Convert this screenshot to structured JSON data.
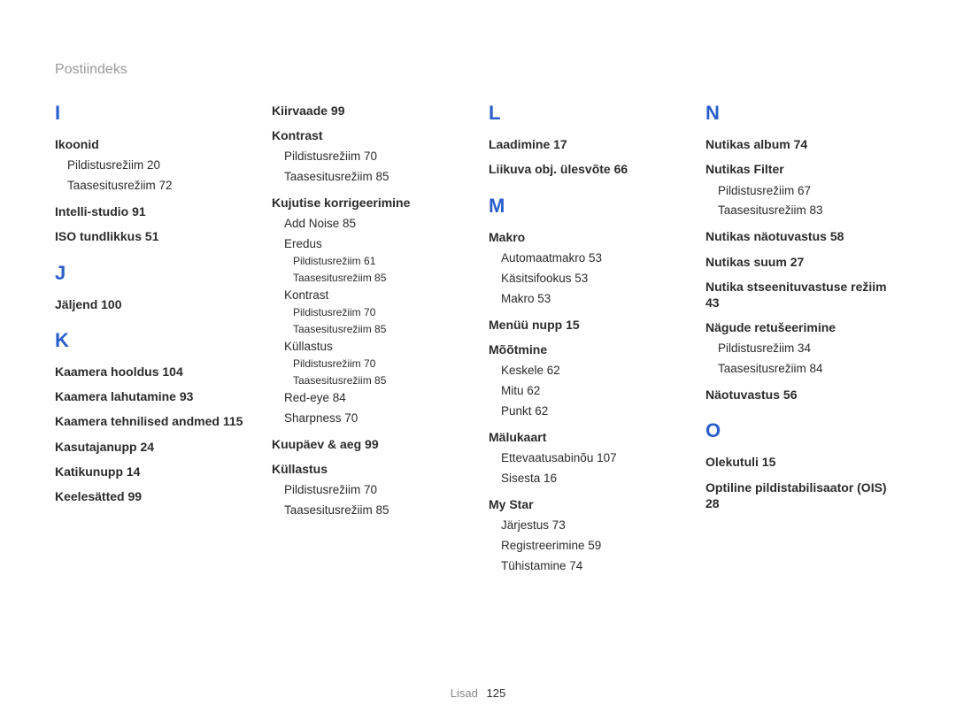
{
  "header": "Postiindeks",
  "footer": {
    "label": "Lisad",
    "page": "125"
  },
  "colors": {
    "letter": "#2a5ecb",
    "header_text": "#9a9a9a",
    "body_text": "#2b2b2b",
    "footer_text": "#888888",
    "background": "#ffffff"
  },
  "typography": {
    "letter_fontsize": 22,
    "entry_fontsize": 14,
    "sub1_fontsize": 13.5,
    "sub2_fontsize": 12
  },
  "col1": {
    "letterI": "I",
    "ikoonid": {
      "label": "Ikoonid",
      "s1": "Pildistusrežiim  20",
      "s2": "Taasesitusrežiim  72"
    },
    "intelli": "Intelli-studio  91",
    "iso": "ISO tundlikkus  51",
    "letterJ": "J",
    "jaljend": "Jäljend  100",
    "letterK": "K",
    "k_hooldus": "Kaamera hooldus  104",
    "k_lahutamine": "Kaamera lahutamine  93",
    "k_tehnilised": "Kaamera tehnilised andmed  115",
    "kasutajanupp": "Kasutajanupp  24",
    "katikunupp": "Katikunupp  14",
    "keelesatted": "Keelesätted  99"
  },
  "col2": {
    "kiirvaade": "Kiirvaade  99",
    "kontrast": {
      "label": "Kontrast",
      "s1": "Pildistusrežiim  70",
      "s2": "Taasesitusrežiim  85"
    },
    "kujutise": {
      "label": "Kujutise korrigeerimine",
      "addnoise": "Add Noise  85",
      "eredus_label": "Eredus",
      "eredus_s1": "Pildistusrežiim  61",
      "eredus_s2": "Taasesitusrežiim  85",
      "kontrast_label": "Kontrast",
      "kontrast_s1": "Pildistusrežiim  70",
      "kontrast_s2": "Taasesitusrežiim  85",
      "kullastus_label": "Küllastus",
      "kullastus_s1": "Pildistusrežiim  70",
      "kullastus_s2": "Taasesitusrežiim  85",
      "redeye": "Red-eye  84",
      "sharpness": "Sharpness  70"
    },
    "kuupaev": "Kuupäev & aeg  99",
    "kullastus": {
      "label": "Küllastus",
      "s1": "Pildistusrežiim  70",
      "s2": "Taasesitusrežiim  85"
    }
  },
  "col3": {
    "letterL": "L",
    "laadimine": "Laadimine  17",
    "liikuva": "Liikuva obj. ülesvõte  66",
    "letterM": "M",
    "makro": {
      "label": "Makro",
      "s1": "Automaatmakro  53",
      "s2": "Käsitsifookus  53",
      "s3": "Makro  53"
    },
    "menuu": "Menüü nupp  15",
    "mootmine": {
      "label": "Mõõtmine",
      "s1": "Keskele  62",
      "s2": "Mitu  62",
      "s3": "Punkt  62"
    },
    "malukaart": {
      "label": "Mälukaart",
      "s1": "Ettevaatusabinõu  107",
      "s2": "Sisesta  16"
    },
    "mystar": {
      "label": "My Star",
      "s1": "Järjestus  73",
      "s2": "Registreerimine  59",
      "s3": "Tühistamine  74"
    }
  },
  "col4": {
    "letterN": "N",
    "nalbum": "Nutikas album  74",
    "nfilter": {
      "label": "Nutikas Filter",
      "s1": "Pildistusrežiim  67",
      "s2": "Taasesitusrežiim  83"
    },
    "nnao": "Nutikas näotuvastus  58",
    "nsuum": "Nutikas suum  27",
    "nstsen": "Nutika stseenituvastuse režiim  43",
    "nretus": {
      "label": "Nägude retušeerimine",
      "s1": "Pildistusrežiim  34",
      "s2": "Taasesitusrežiim  84"
    },
    "naotuvastus": "Näotuvastus  56",
    "letterO": "O",
    "olekutuli": "Olekutuli  15",
    "ois": "Optiline pildistabilisaator (OIS)  28"
  }
}
